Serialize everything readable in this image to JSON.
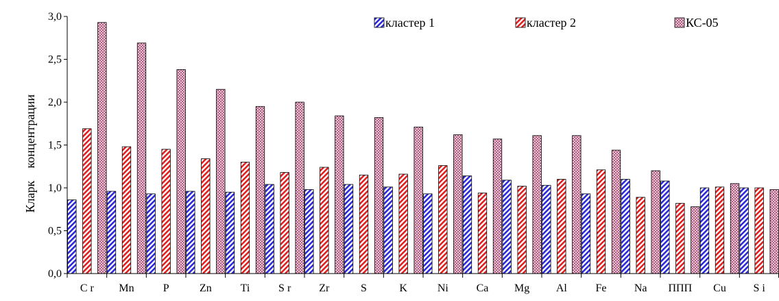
{
  "chart_data": {
    "type": "bar",
    "title": "",
    "xlabel": "",
    "ylabel": "Кларк    концентрации",
    "ylim": [
      0,
      3.0
    ],
    "yticks": [
      "0,0",
      "0,5",
      "1,0",
      "1,5",
      "2,0",
      "2,5",
      "3,0"
    ],
    "ytick_values": [
      0,
      0.5,
      1.0,
      1.5,
      2.0,
      2.5,
      3.0
    ],
    "grid": false,
    "legend_position": "top",
    "categories": [
      "C r",
      "Mn",
      "P",
      "Zn",
      "Ti",
      "S r",
      "Zr",
      "S",
      "K",
      "Ni",
      "Ca",
      "Mg",
      "Al",
      "Fe",
      "Na",
      "ППП",
      "Cu",
      "S i"
    ],
    "series": [
      {
        "name": "кластер 1",
        "color": "#2a2ad8",
        "pattern": "diagonal-stripes-blue",
        "values": [
          0.86,
          0.96,
          0.93,
          0.96,
          0.95,
          1.04,
          0.98,
          1.04,
          1.01,
          0.93,
          1.14,
          1.09,
          1.03,
          0.93,
          1.1,
          1.08,
          1.0,
          1.0
        ]
      },
      {
        "name": "кластер 2",
        "color": "#e02020",
        "pattern": "diagonal-stripes-red",
        "values": [
          1.69,
          1.48,
          1.45,
          1.34,
          1.3,
          1.18,
          1.24,
          1.15,
          1.16,
          1.26,
          0.94,
          1.02,
          1.1,
          1.21,
          0.89,
          0.82,
          1.01,
          1.0
        ]
      },
      {
        "name": "КС-05",
        "color": "#a0406a",
        "pattern": "crosshatch-maroon",
        "values": [
          2.93,
          2.69,
          2.38,
          2.15,
          1.95,
          2.0,
          1.84,
          1.82,
          1.71,
          1.62,
          1.57,
          1.61,
          1.61,
          1.44,
          1.2,
          0.78,
          1.05,
          0.98
        ]
      }
    ]
  }
}
